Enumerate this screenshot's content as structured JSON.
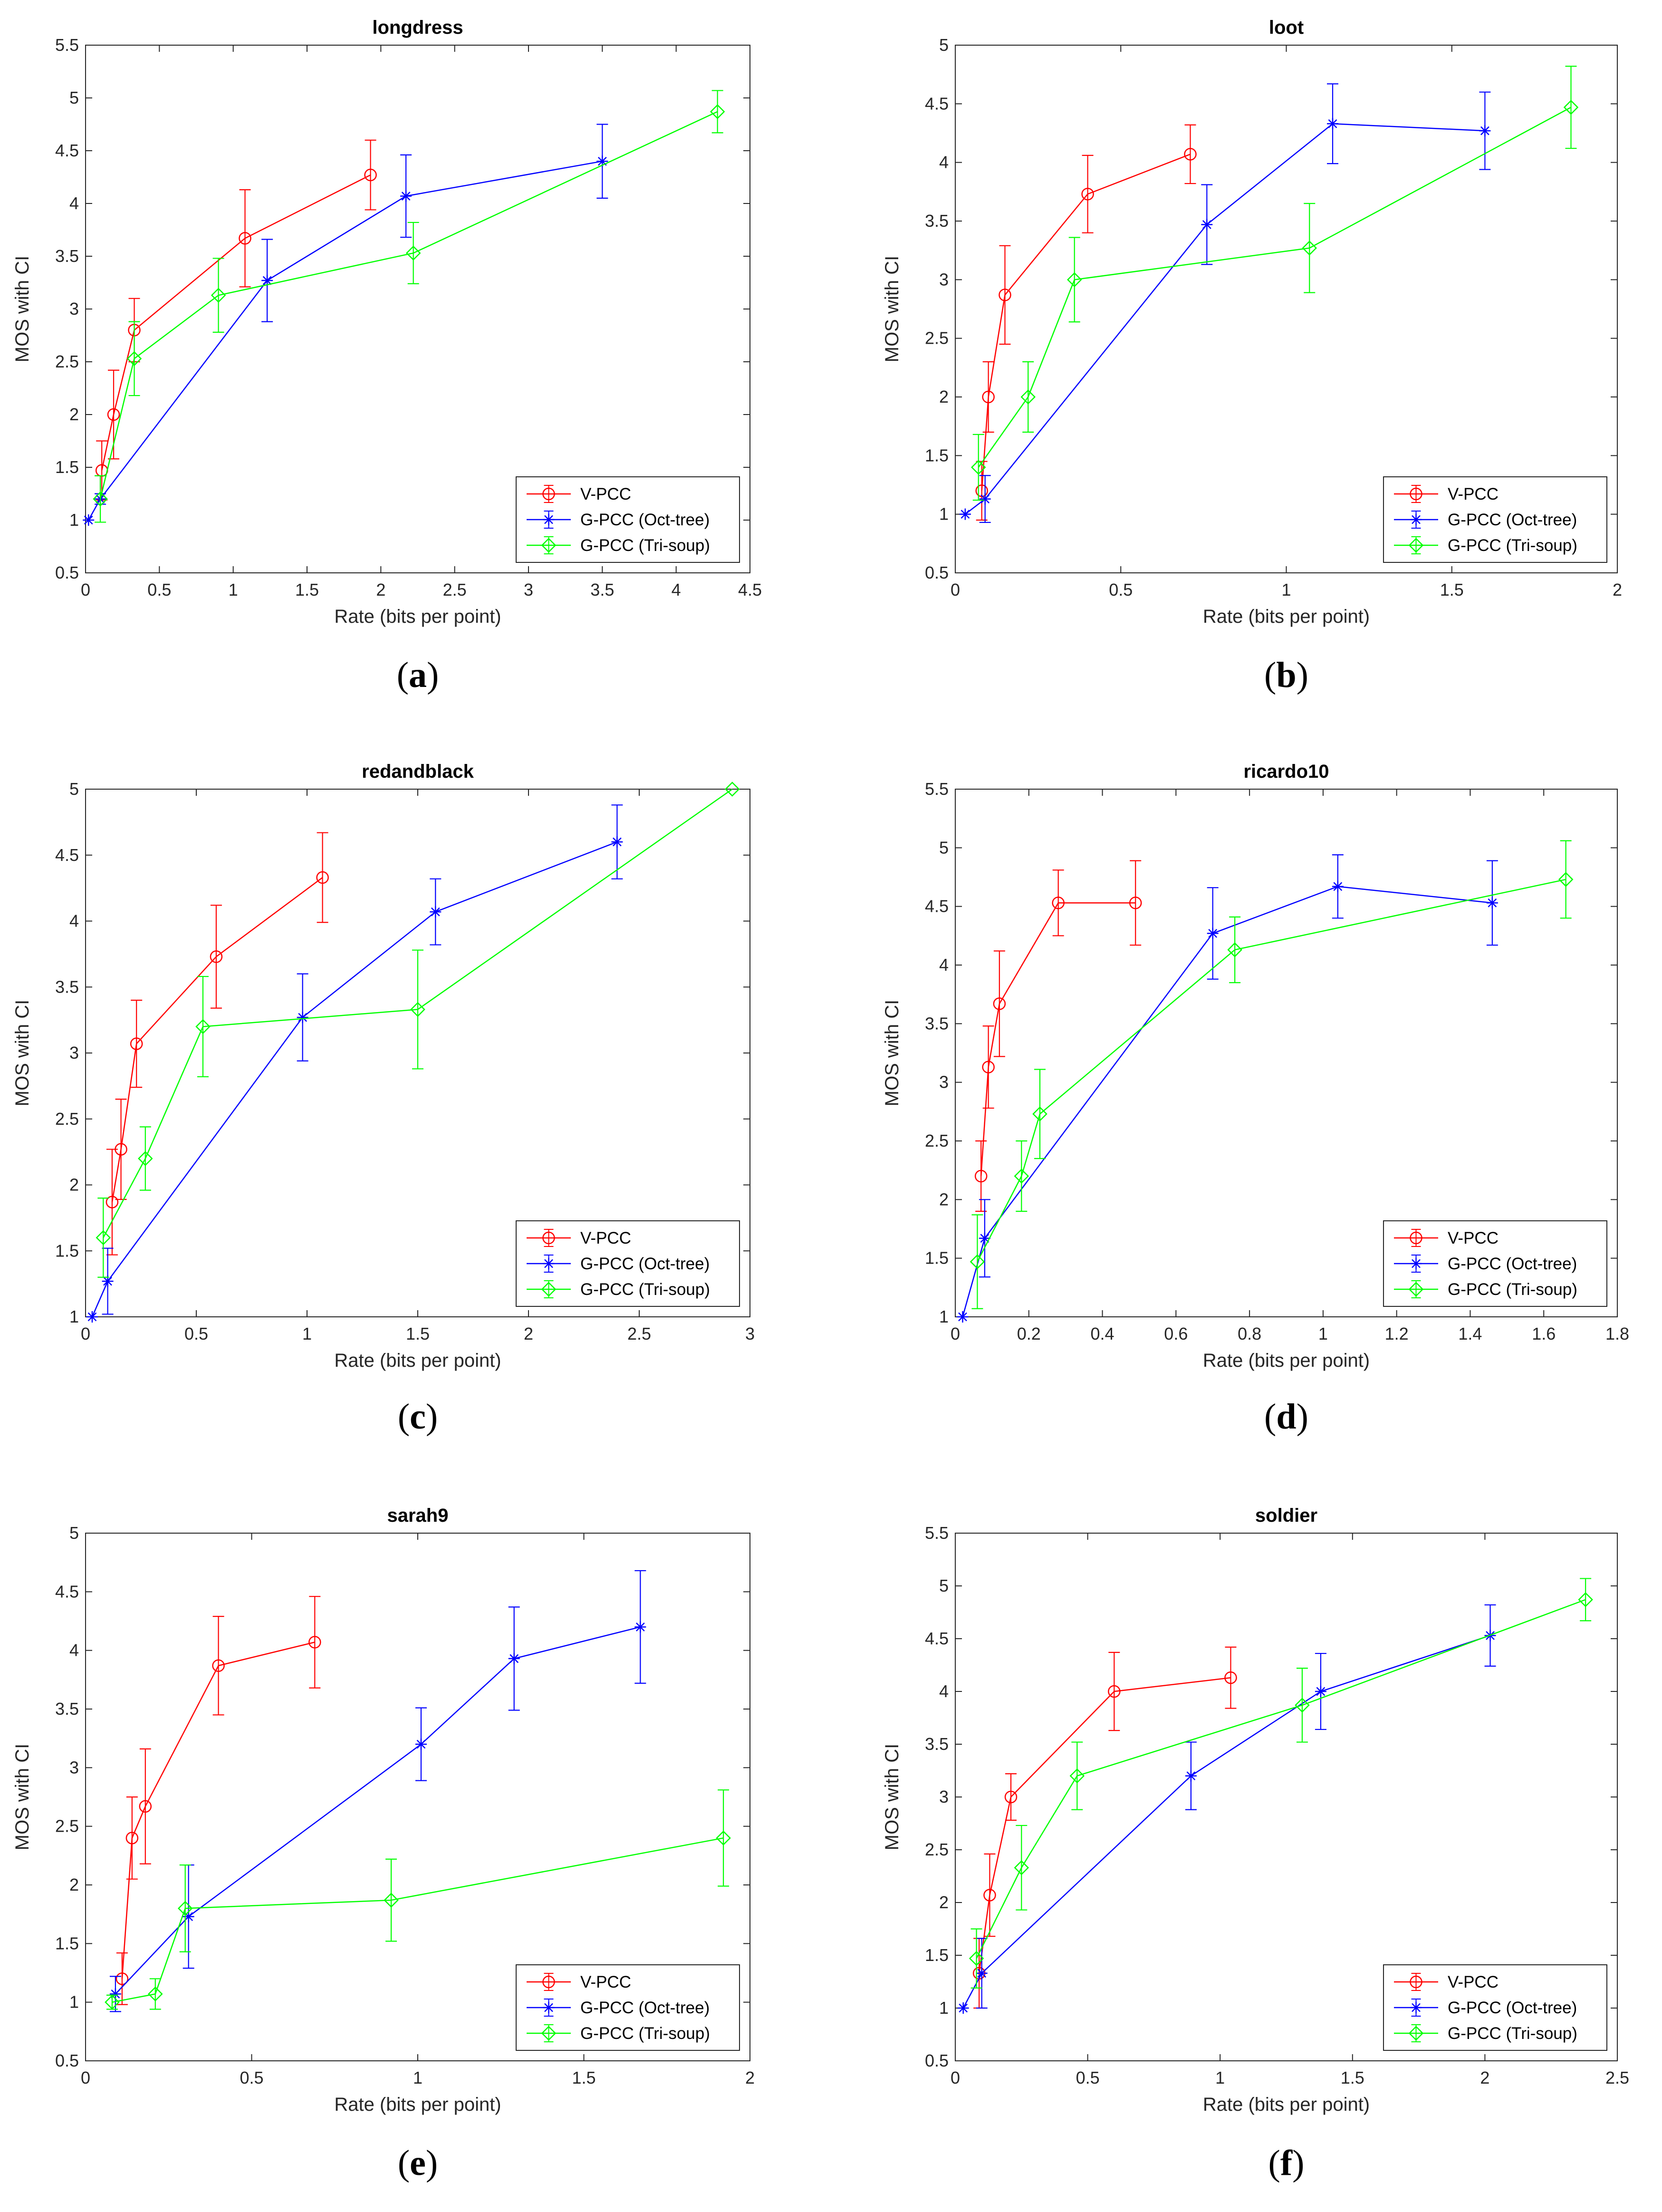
{
  "chart_data": [
    {
      "type": "line",
      "title": "longdress",
      "caption": "a",
      "xlabel": "Rate (bits per point)",
      "ylabel": "MOS with CI",
      "xlim": [
        0,
        4.5
      ],
      "ylim": [
        0.5,
        5.5
      ],
      "xticks": [
        0,
        0.5,
        1,
        1.5,
        2,
        2.5,
        3,
        3.5,
        4,
        4.5
      ],
      "yticks": [
        0.5,
        1,
        1.5,
        2,
        2.5,
        3,
        3.5,
        4,
        4.5,
        5,
        5.5
      ],
      "legend_position": "bottom-right",
      "series": [
        {
          "name": "V-PCC",
          "color": "#ff0000",
          "marker": "circle",
          "x": [
            0.11,
            0.19,
            0.33,
            1.08,
            1.93
          ],
          "y": [
            1.47,
            2.0,
            2.8,
            3.67,
            4.27
          ],
          "ci": [
            0.28,
            0.42,
            0.3,
            0.46,
            0.33
          ]
        },
        {
          "name": "G-PCC (Oct-tree)",
          "color": "#0000ff",
          "marker": "star",
          "x": [
            0.02,
            0.1,
            1.23,
            2.17,
            3.5
          ],
          "y": [
            1.0,
            1.2,
            3.27,
            4.07,
            4.4
          ],
          "ci": [
            0.0,
            0.05,
            0.39,
            0.39,
            0.35
          ]
        },
        {
          "name": "G-PCC (Tri-soup)",
          "color": "#00ff00",
          "marker": "diamond",
          "x": [
            0.1,
            0.33,
            0.9,
            2.22,
            4.28
          ],
          "y": [
            1.2,
            2.53,
            3.13,
            3.53,
            4.87
          ],
          "ci": [
            0.22,
            0.35,
            0.35,
            0.29,
            0.2
          ]
        }
      ]
    },
    {
      "type": "line",
      "title": "loot",
      "caption": "b",
      "xlabel": "Rate (bits per point)",
      "ylabel": "MOS with CI",
      "xlim": [
        0,
        2
      ],
      "ylim": [
        0.5,
        5
      ],
      "xticks": [
        0,
        0.5,
        1,
        1.5,
        2
      ],
      "yticks": [
        0.5,
        1,
        1.5,
        2,
        2.5,
        3,
        3.5,
        4,
        4.5,
        5
      ],
      "legend_position": "bottom-right",
      "series": [
        {
          "name": "V-PCC",
          "color": "#ff0000",
          "marker": "circle",
          "x": [
            0.08,
            0.1,
            0.15,
            0.4,
            0.71
          ],
          "y": [
            1.2,
            2.0,
            2.87,
            3.73,
            4.07
          ],
          "ci": [
            0.25,
            0.3,
            0.42,
            0.33,
            0.25
          ]
        },
        {
          "name": "G-PCC (Oct-tree)",
          "color": "#0000ff",
          "marker": "star",
          "x": [
            0.03,
            0.09,
            0.76,
            1.14,
            1.6
          ],
          "y": [
            1.0,
            1.13,
            3.47,
            4.33,
            4.27
          ],
          "ci": [
            0.0,
            0.2,
            0.34,
            0.34,
            0.33
          ]
        },
        {
          "name": "G-PCC (Tri-soup)",
          "color": "#00ff00",
          "marker": "diamond",
          "x": [
            0.07,
            0.22,
            0.36,
            1.07,
            1.86
          ],
          "y": [
            1.4,
            2.0,
            3.0,
            3.27,
            4.47
          ],
          "ci": [
            0.28,
            0.3,
            0.36,
            0.38,
            0.35
          ]
        }
      ]
    },
    {
      "type": "line",
      "title": "redandblack",
      "caption": "c",
      "xlabel": "Rate (bits per point)",
      "ylabel": "MOS with CI",
      "xlim": [
        0,
        3
      ],
      "ylim": [
        1,
        5
      ],
      "xticks": [
        0,
        0.5,
        1,
        1.5,
        2,
        2.5,
        3
      ],
      "yticks": [
        1,
        1.5,
        2,
        2.5,
        3,
        3.5,
        4,
        4.5,
        5
      ],
      "legend_position": "bottom-right",
      "series": [
        {
          "name": "V-PCC",
          "color": "#ff0000",
          "marker": "circle",
          "x": [
            0.12,
            0.16,
            0.23,
            0.59,
            1.07
          ],
          "y": [
            1.87,
            2.27,
            3.07,
            3.73,
            4.33
          ],
          "ci": [
            0.4,
            0.38,
            0.33,
            0.39,
            0.34
          ]
        },
        {
          "name": "G-PCC (Oct-tree)",
          "color": "#0000ff",
          "marker": "star",
          "x": [
            0.03,
            0.1,
            0.98,
            1.58,
            2.4
          ],
          "y": [
            1.0,
            1.27,
            3.27,
            4.07,
            4.6
          ],
          "ci": [
            0.0,
            0.25,
            0.33,
            0.25,
            0.28
          ]
        },
        {
          "name": "G-PCC (Tri-soup)",
          "color": "#00ff00",
          "marker": "diamond",
          "x": [
            0.08,
            0.27,
            0.53,
            1.5,
            2.92
          ],
          "y": [
            1.6,
            2.2,
            3.2,
            3.33,
            5.0
          ],
          "ci": [
            0.3,
            0.24,
            0.38,
            0.45,
            0.0
          ]
        }
      ]
    },
    {
      "type": "line",
      "title": "ricardo10",
      "caption": "d",
      "xlabel": "Rate (bits per point)",
      "ylabel": "MOS with CI",
      "xlim": [
        0,
        1.8
      ],
      "ylim": [
        1,
        5.5
      ],
      "xticks": [
        0,
        0.2,
        0.4,
        0.6,
        0.8,
        1,
        1.2,
        1.4,
        1.6,
        1.8
      ],
      "yticks": [
        1,
        1.5,
        2,
        2.5,
        3,
        3.5,
        4,
        4.5,
        5,
        5.5
      ],
      "legend_position": "bottom-right",
      "series": [
        {
          "name": "V-PCC",
          "color": "#ff0000",
          "marker": "circle",
          "x": [
            0.07,
            0.09,
            0.12,
            0.28,
            0.49
          ],
          "y": [
            2.2,
            3.13,
            3.67,
            4.53,
            4.53
          ],
          "ci": [
            0.3,
            0.35,
            0.45,
            0.28,
            0.36
          ]
        },
        {
          "name": "G-PCC (Oct-tree)",
          "color": "#0000ff",
          "marker": "star",
          "x": [
            0.02,
            0.08,
            0.7,
            1.04,
            1.46
          ],
          "y": [
            1.0,
            1.67,
            4.27,
            4.67,
            4.53
          ],
          "ci": [
            0.0,
            0.33,
            0.39,
            0.27,
            0.36
          ]
        },
        {
          "name": "G-PCC (Tri-soup)",
          "color": "#00ff00",
          "marker": "diamond",
          "x": [
            0.06,
            0.18,
            0.23,
            0.76,
            1.66
          ],
          "y": [
            1.47,
            2.2,
            2.73,
            4.13,
            4.73
          ],
          "ci": [
            0.4,
            0.3,
            0.38,
            0.28,
            0.33
          ]
        }
      ]
    },
    {
      "type": "line",
      "title": "sarah9",
      "caption": "e",
      "xlabel": "Rate (bits per point)",
      "ylabel": "MOS with CI",
      "xlim": [
        0,
        2
      ],
      "ylim": [
        0.5,
        5
      ],
      "xticks": [
        0,
        0.5,
        1,
        1.5,
        2
      ],
      "yticks": [
        0.5,
        1,
        1.5,
        2,
        2.5,
        3,
        3.5,
        4,
        4.5,
        5
      ],
      "legend_position": "bottom-right",
      "series": [
        {
          "name": "V-PCC",
          "color": "#ff0000",
          "marker": "circle",
          "x": [
            0.11,
            0.14,
            0.18,
            0.4,
            0.69
          ],
          "y": [
            1.2,
            2.4,
            2.67,
            3.87,
            4.07
          ],
          "ci": [
            0.22,
            0.35,
            0.49,
            0.42,
            0.39
          ]
        },
        {
          "name": "G-PCC (Oct-tree)",
          "color": "#0000ff",
          "marker": "star",
          "x": [
            0.09,
            0.31,
            1.01,
            1.29,
            1.67
          ],
          "y": [
            1.07,
            1.73,
            3.2,
            3.93,
            4.2
          ],
          "ci": [
            0.15,
            0.44,
            0.31,
            0.44,
            0.48
          ]
        },
        {
          "name": "G-PCC (Tri-soup)",
          "color": "#00ff00",
          "marker": "diamond",
          "x": [
            0.08,
            0.21,
            0.3,
            0.92,
            1.92
          ],
          "y": [
            1.0,
            1.07,
            1.8,
            1.87,
            2.4
          ],
          "ci": [
            0.06,
            0.13,
            0.37,
            0.35,
            0.41
          ]
        }
      ]
    },
    {
      "type": "line",
      "title": "soldier",
      "caption": "f",
      "xlabel": "Rate (bits per point)",
      "ylabel": "MOS with CI",
      "xlim": [
        0,
        2.5
      ],
      "ylim": [
        0.5,
        5.5
      ],
      "xticks": [
        0,
        0.5,
        1,
        1.5,
        2,
        2.5
      ],
      "yticks": [
        0.5,
        1,
        1.5,
        2,
        2.5,
        3,
        3.5,
        4,
        4.5,
        5,
        5.5
      ],
      "legend_position": "bottom-right",
      "series": [
        {
          "name": "V-PCC",
          "color": "#ff0000",
          "marker": "circle",
          "x": [
            0.09,
            0.13,
            0.21,
            0.6,
            1.04
          ],
          "y": [
            1.33,
            2.07,
            3.0,
            4.0,
            4.13
          ],
          "ci": [
            0.33,
            0.39,
            0.22,
            0.37,
            0.29
          ]
        },
        {
          "name": "G-PCC (Oct-tree)",
          "color": "#0000ff",
          "marker": "star",
          "x": [
            0.03,
            0.1,
            0.89,
            1.38,
            2.02
          ],
          "y": [
            1.0,
            1.33,
            3.2,
            4.0,
            4.53
          ],
          "ci": [
            0.0,
            0.33,
            0.32,
            0.36,
            0.29
          ]
        },
        {
          "name": "G-PCC (Tri-soup)",
          "color": "#00ff00",
          "marker": "diamond",
          "x": [
            0.08,
            0.25,
            0.46,
            1.31,
            2.38
          ],
          "y": [
            1.47,
            2.33,
            3.2,
            3.87,
            4.87
          ],
          "ci": [
            0.28,
            0.4,
            0.32,
            0.35,
            0.2
          ]
        }
      ]
    }
  ]
}
